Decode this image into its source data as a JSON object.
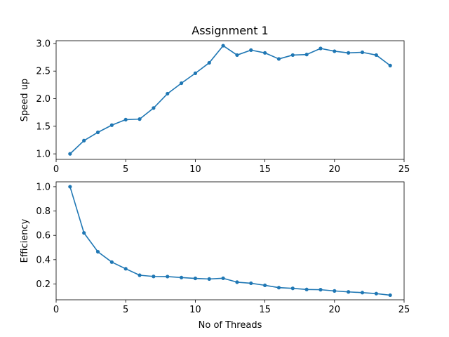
{
  "chart_data": [
    {
      "type": "line",
      "title": "Assignment 1",
      "xlabel": "",
      "ylabel": "Speed up",
      "xlim": [
        0,
        25
      ],
      "ylim": [
        0.9,
        3.05
      ],
      "xticks": [
        0,
        5,
        10,
        15,
        20,
        25
      ],
      "xtick_labels": [
        "0",
        "5",
        "10",
        "15",
        "20",
        "25"
      ],
      "yticks": [
        1.0,
        1.5,
        2.0,
        2.5,
        3.0
      ],
      "ytick_labels": [
        "1.0",
        "1.5",
        "2.0",
        "2.5",
        "3.0"
      ],
      "grid": false,
      "color": "#1f77b4",
      "x": [
        1,
        2,
        3,
        4,
        5,
        6,
        7,
        8,
        9,
        10,
        11,
        12,
        13,
        14,
        15,
        16,
        17,
        18,
        19,
        20,
        21,
        22,
        23,
        24
      ],
      "y": [
        1.0,
        1.24,
        1.39,
        1.52,
        1.62,
        1.63,
        1.83,
        2.09,
        2.28,
        2.46,
        2.65,
        2.96,
        2.79,
        2.88,
        2.83,
        2.72,
        2.79,
        2.8,
        2.91,
        2.86,
        2.83,
        2.84,
        2.79,
        2.6
      ]
    },
    {
      "type": "line",
      "title": "",
      "xlabel": "No of Threads",
      "ylabel": "Efficiency",
      "xlim": [
        0,
        25
      ],
      "ylim": [
        0.07,
        1.04
      ],
      "xticks": [
        0,
        5,
        10,
        15,
        20,
        25
      ],
      "xtick_labels": [
        "0",
        "5",
        "10",
        "15",
        "20",
        "25"
      ],
      "yticks": [
        0.2,
        0.4,
        0.6,
        0.8,
        1.0
      ],
      "ytick_labels": [
        "0.2",
        "0.4",
        "0.6",
        "0.8",
        "1.0"
      ],
      "grid": false,
      "color": "#1f77b4",
      "x": [
        1,
        2,
        3,
        4,
        5,
        6,
        7,
        8,
        9,
        10,
        11,
        12,
        13,
        14,
        15,
        16,
        17,
        18,
        19,
        20,
        21,
        22,
        23,
        24
      ],
      "y": [
        1.0,
        0.62,
        0.465,
        0.38,
        0.325,
        0.272,
        0.262,
        0.261,
        0.253,
        0.246,
        0.241,
        0.247,
        0.215,
        0.206,
        0.189,
        0.17,
        0.164,
        0.155,
        0.153,
        0.143,
        0.135,
        0.129,
        0.121,
        0.108
      ]
    }
  ]
}
